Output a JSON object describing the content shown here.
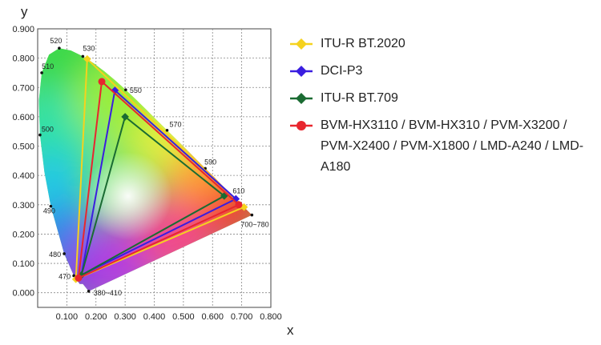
{
  "chart_data": {
    "type": "scatter",
    "title": "",
    "xlabel": "x",
    "ylabel": "y",
    "xlim": [
      0,
      0.8
    ],
    "ylim": [
      -0.05,
      0.9
    ],
    "x_ticks": [
      "0.100",
      "0.200",
      "0.300",
      "0.400",
      "0.500",
      "0.600",
      "0.700",
      "0.800"
    ],
    "y_ticks": [
      "0.000",
      "0.100",
      "0.200",
      "0.300",
      "0.400",
      "0.500",
      "0.600",
      "0.700",
      "0.800",
      "0.900"
    ],
    "grid": true,
    "legend_position": "right",
    "spectral_locus": [
      [
        0.175,
        0.005
      ],
      [
        0.155,
        0.03
      ],
      [
        0.144,
        0.03
      ],
      [
        0.124,
        0.058
      ],
      [
        0.091,
        0.133
      ],
      [
        0.045,
        0.295
      ],
      [
        0.023,
        0.412
      ],
      [
        0.008,
        0.538
      ],
      [
        0.004,
        0.655
      ],
      [
        0.014,
        0.75
      ],
      [
        0.039,
        0.812
      ],
      [
        0.074,
        0.834
      ],
      [
        0.114,
        0.826
      ],
      [
        0.155,
        0.806
      ],
      [
        0.193,
        0.782
      ],
      [
        0.23,
        0.754
      ],
      [
        0.266,
        0.724
      ],
      [
        0.302,
        0.692
      ],
      [
        0.337,
        0.659
      ],
      [
        0.373,
        0.624
      ],
      [
        0.408,
        0.589
      ],
      [
        0.444,
        0.554
      ],
      [
        0.479,
        0.52
      ],
      [
        0.512,
        0.487
      ],
      [
        0.545,
        0.454
      ],
      [
        0.575,
        0.424
      ],
      [
        0.603,
        0.397
      ],
      [
        0.627,
        0.372
      ],
      [
        0.648,
        0.351
      ],
      [
        0.666,
        0.334
      ],
      [
        0.68,
        0.32
      ],
      [
        0.691,
        0.308
      ],
      [
        0.701,
        0.299
      ],
      [
        0.735,
        0.265
      ]
    ],
    "wavelength_labels": [
      {
        "label": "380~410",
        "x": 0.175,
        "y": 0.005
      },
      {
        "label": "470",
        "x": 0.124,
        "y": 0.058
      },
      {
        "label": "480",
        "x": 0.091,
        "y": 0.133
      },
      {
        "label": "490",
        "x": 0.045,
        "y": 0.295
      },
      {
        "label": "500",
        "x": 0.008,
        "y": 0.538
      },
      {
        "label": "510",
        "x": 0.014,
        "y": 0.75
      },
      {
        "label": "520",
        "x": 0.074,
        "y": 0.834
      },
      {
        "label": "530",
        "x": 0.155,
        "y": 0.806
      },
      {
        "label": "550",
        "x": 0.302,
        "y": 0.692
      },
      {
        "label": "570",
        "x": 0.444,
        "y": 0.554
      },
      {
        "label": "590",
        "x": 0.575,
        "y": 0.424
      },
      {
        "label": "610",
        "x": 0.68,
        "y": 0.32
      },
      {
        "label": "700~780",
        "x": 0.735,
        "y": 0.265
      }
    ],
    "series": [
      {
        "name": "ITU-R BT.2020",
        "color": "#f5d21e",
        "marker": "diamond",
        "points": [
          [
            0.708,
            0.292
          ],
          [
            0.17,
            0.797
          ],
          [
            0.131,
            0.046
          ]
        ]
      },
      {
        "name": "DCI-P3",
        "color": "#3a1ee0",
        "marker": "diamond",
        "points": [
          [
            0.68,
            0.32
          ],
          [
            0.265,
            0.69
          ],
          [
            0.15,
            0.06
          ]
        ]
      },
      {
        "name": "ITU-R BT.709",
        "color": "#1a6b32",
        "marker": "diamond",
        "points": [
          [
            0.64,
            0.33
          ],
          [
            0.3,
            0.6
          ],
          [
            0.15,
            0.06
          ]
        ]
      },
      {
        "name": "BVM-HX3110 / BVM-HX310 / PVM-X3200 / PVM-X2400 / PVM-X1800 / LMD-A240 / LMD-A180",
        "color": "#e8262e",
        "marker": "circle",
        "points": [
          [
            0.69,
            0.3
          ],
          [
            0.22,
            0.72
          ],
          [
            0.14,
            0.05
          ]
        ]
      }
    ]
  }
}
